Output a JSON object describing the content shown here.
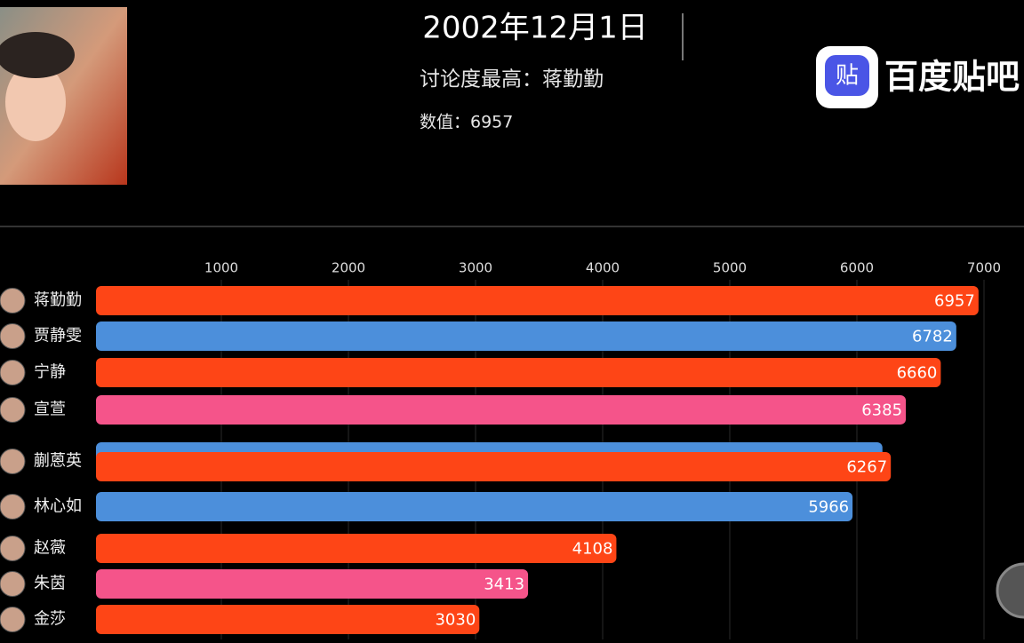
{
  "header": {
    "date": "2002年12月1日",
    "leader": "讨论度最高：蒋勤勤",
    "value": "数值：6957"
  },
  "logo": {
    "icon": "贴",
    "text": "百度贴吧"
  },
  "chart_data": {
    "type": "bar",
    "categories": [
      "蒋勤勤",
      "贾静雯",
      "宁静",
      "宣萱",
      null,
      "蒯蒽英",
      "林心如",
      "赵薇",
      "朱茵",
      "金莎"
    ],
    "values": [
      6957,
      6782,
      6660,
      6385,
      6201,
      6267,
      5966,
      4108,
      3413,
      3030
    ],
    "colors": [
      "#fe4516",
      "#4c8fdb",
      "#fe4516",
      "#f5548a",
      "#4c8fdb",
      "#fe4516",
      "#4c8fdb",
      "#fe4516",
      "#f5548a",
      "#fe4516"
    ],
    "xlim": [
      0,
      7000
    ],
    "xticks": [
      1000,
      2000,
      3000,
      4000,
      5000,
      6000,
      7000
    ],
    "grid": true
  }
}
